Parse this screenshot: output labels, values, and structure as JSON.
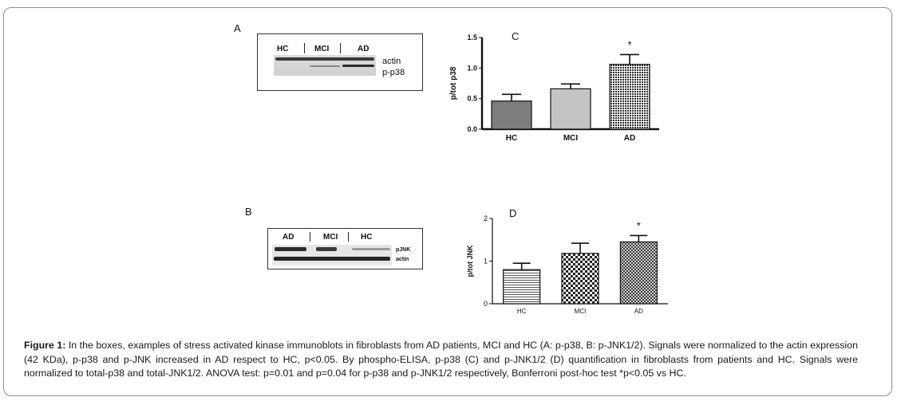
{
  "panels": {
    "A": {
      "letter": "A",
      "lanes": [
        "HC",
        "MCI",
        "AD"
      ],
      "band_labels": [
        "actin",
        "p-p38"
      ]
    },
    "B": {
      "letter": "B",
      "lanes": [
        "AD",
        "MCI",
        "HC"
      ],
      "band_labels": [
        "pJNK",
        "actin"
      ]
    }
  },
  "chart_data": [
    {
      "type": "bar",
      "panel_label": "C",
      "categories": [
        "HC",
        "MCI",
        "AD"
      ],
      "values": [
        0.46,
        0.66,
        1.06
      ],
      "errors": [
        0.11,
        0.08,
        0.16
      ],
      "significance": [
        "",
        "",
        "*"
      ],
      "ylabel": "p/tot p38",
      "xlabel": "",
      "ylim": [
        0,
        1.5
      ],
      "yticks": [
        "0.0",
        "0.5",
        "1.0",
        "1.5"
      ],
      "fills": [
        "solid-dark-gray",
        "solid-light-gray",
        "dotted-hatch"
      ],
      "colors": [
        "#7d7d7d",
        "#c4c4c4",
        "#2b2b2b"
      ]
    },
    {
      "type": "bar",
      "panel_label": "D",
      "categories": [
        "HC",
        "MCI",
        "AD"
      ],
      "values": [
        0.8,
        1.18,
        1.45
      ],
      "errors": [
        0.15,
        0.24,
        0.15
      ],
      "significance": [
        "",
        "",
        "*"
      ],
      "ylabel": "p/tot JNK",
      "xlabel": "",
      "ylim": [
        0,
        2
      ],
      "yticks": [
        "0",
        "1",
        "2"
      ],
      "fills": [
        "horizontal-lines",
        "checkerboard",
        "crosshatch"
      ],
      "colors": [
        "#555555",
        "#222222",
        "#333333"
      ]
    }
  ],
  "caption": {
    "label": "Figure 1:",
    "text": " In the boxes, examples of stress activated kinase immunoblots in fibroblasts from AD patients, MCI and HC (A: p-p38, B: p-JNK1/2). Signals were normalized to the actin expression (42 KDa), p-p38 and p-JNK increased in AD respect to HC, p<0.05. By phospho-ELISA, p-p38 (C) and p-JNK1/2 (D) quantification in fibroblasts from patients and HC. Signals were normalized to total-p38 and total-JNK1/2. ANOVA test: p=0.01 and p=0.04 for p-p38 and p-JNK1/2 respectively, Bonferroni post-hoc test *p<0.05 vs HC."
  }
}
